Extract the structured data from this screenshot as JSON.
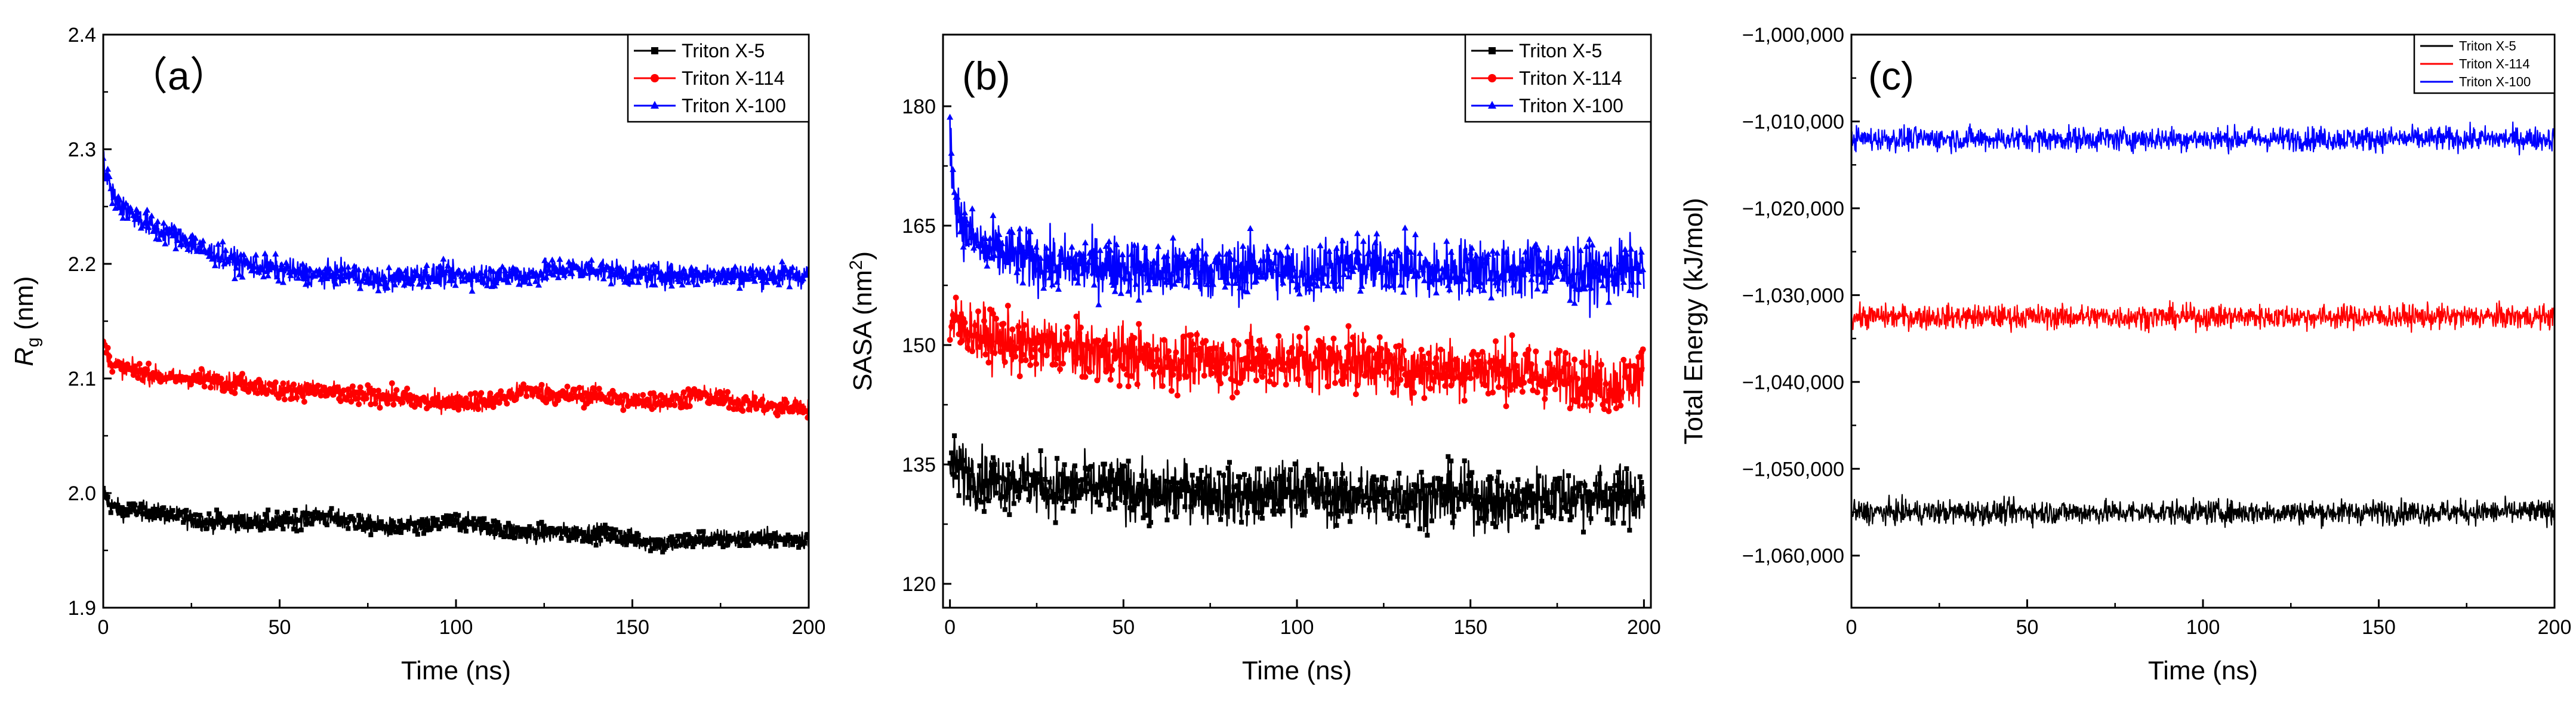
{
  "figure": {
    "colors": {
      "Triton X-5": "#000000",
      "Triton X-114": "#ff0000",
      "Triton X-100": "#0000ff"
    }
  },
  "chart_data": [
    {
      "type": "line",
      "panel_label": "（a）",
      "title": "",
      "xlabel": "Time (ns)",
      "ylabel": "Rg (nm)",
      "ylabel_main": "R",
      "ylabel_sub": "g",
      "ylabel_rest": " (nm)",
      "xlim": [
        0,
        200
      ],
      "ylim": [
        1.9,
        2.4
      ],
      "xticks": [
        0,
        50,
        100,
        150,
        200
      ],
      "xtick_labels": [
        "0",
        "50",
        "100",
        "150",
        "200"
      ],
      "yticks": [
        1.9,
        2.0,
        2.1,
        2.2,
        2.3,
        2.4
      ],
      "ytick_labels": [
        "1.9",
        "2.0",
        "2.1",
        "2.2",
        "2.3",
        "2.4"
      ],
      "legend_position": "top-right",
      "noise_amplitude": [
        0.008,
        0.008,
        0.01
      ],
      "series": [
        {
          "name": "Triton X-5",
          "color": "#000000",
          "marker": "square",
          "x": [
            0,
            2,
            5,
            10,
            20,
            30,
            40,
            50,
            60,
            70,
            80,
            90,
            100,
            110,
            120,
            130,
            140,
            150,
            160,
            170,
            180,
            190,
            200
          ],
          "values": [
            2.0,
            1.99,
            1.985,
            1.985,
            1.98,
            1.975,
            1.975,
            1.975,
            1.98,
            1.975,
            1.97,
            1.97,
            1.975,
            1.97,
            1.965,
            1.965,
            1.965,
            1.96,
            1.955,
            1.96,
            1.96,
            1.96,
            1.96
          ]
        },
        {
          "name": "Triton X-114",
          "color": "#ff0000",
          "marker": "circle",
          "x": [
            0,
            2,
            5,
            10,
            20,
            30,
            40,
            50,
            60,
            70,
            80,
            90,
            100,
            110,
            120,
            130,
            140,
            150,
            160,
            170,
            180,
            190,
            200
          ],
          "values": [
            2.13,
            2.115,
            2.11,
            2.105,
            2.1,
            2.1,
            2.095,
            2.09,
            2.09,
            2.085,
            2.085,
            2.08,
            2.08,
            2.08,
            2.09,
            2.085,
            2.085,
            2.08,
            2.08,
            2.085,
            2.08,
            2.075,
            2.075
          ]
        },
        {
          "name": "Triton X-100",
          "color": "#0000ff",
          "marker": "triangle",
          "x": [
            0,
            1,
            3,
            5,
            10,
            15,
            20,
            30,
            40,
            50,
            60,
            70,
            80,
            90,
            100,
            110,
            120,
            130,
            140,
            150,
            160,
            170,
            180,
            190,
            200
          ],
          "values": [
            2.29,
            2.275,
            2.26,
            2.25,
            2.24,
            2.23,
            2.225,
            2.21,
            2.2,
            2.195,
            2.19,
            2.19,
            2.185,
            2.19,
            2.19,
            2.19,
            2.19,
            2.195,
            2.195,
            2.19,
            2.19,
            2.19,
            2.19,
            2.19,
            2.19
          ]
        }
      ]
    },
    {
      "type": "line",
      "panel_label": "(b)",
      "title": "",
      "xlabel": "Time (ns)",
      "ylabel": "SASA (nm2)",
      "ylabel_main": "SASA (nm",
      "ylabel_sup": "2",
      "ylabel_rest": ")",
      "xlim": [
        -2,
        202
      ],
      "ylim": [
        117,
        189
      ],
      "xticks": [
        0,
        50,
        100,
        150,
        200
      ],
      "xtick_labels": [
        "0",
        "50",
        "100",
        "150",
        "200"
      ],
      "yticks": [
        120,
        135,
        150,
        165,
        180
      ],
      "ytick_labels": [
        "120",
        "135",
        "150",
        "165",
        "180"
      ],
      "legend_position": "top-right",
      "noise_amplitude": [
        3.5,
        3.5,
        3.5
      ],
      "series": [
        {
          "name": "Triton X-5",
          "color": "#000000",
          "marker": "square",
          "x": [
            0,
            5,
            10,
            20,
            30,
            40,
            50,
            60,
            70,
            80,
            90,
            100,
            110,
            120,
            130,
            140,
            150,
            160,
            170,
            180,
            190,
            200
          ],
          "values": [
            135,
            134,
            133,
            133,
            132,
            132,
            132,
            131,
            132,
            131,
            131,
            132,
            131,
            131,
            131,
            131,
            131,
            130,
            131,
            131,
            131,
            131
          ]
        },
        {
          "name": "Triton X-114",
          "color": "#ff0000",
          "marker": "circle",
          "x": [
            0,
            5,
            10,
            20,
            30,
            40,
            50,
            60,
            70,
            80,
            90,
            100,
            110,
            120,
            130,
            140,
            150,
            160,
            170,
            180,
            190,
            200
          ],
          "values": [
            153,
            152,
            151,
            150,
            150,
            149,
            149,
            148,
            148,
            148,
            148,
            148,
            148,
            148,
            147,
            147,
            147,
            147,
            146,
            146,
            145,
            146
          ]
        },
        {
          "name": "Triton X-100",
          "color": "#0000ff",
          "marker": "triangle",
          "x": [
            0,
            1,
            3,
            5,
            10,
            20,
            30,
            40,
            50,
            60,
            70,
            80,
            90,
            100,
            110,
            120,
            130,
            140,
            150,
            160,
            170,
            180,
            190,
            200
          ],
          "values": [
            177,
            170,
            166,
            164,
            162,
            161,
            160,
            160,
            160,
            159,
            160,
            159,
            160,
            159,
            160,
            160,
            160,
            159,
            160,
            159,
            160,
            159,
            159,
            160
          ]
        }
      ]
    },
    {
      "type": "line",
      "panel_label": "(c)",
      "title": "",
      "xlabel": "Time (ns)",
      "ylabel": "Total Energy (kJ/mol)",
      "xlim": [
        0,
        200
      ],
      "ylim": [
        -1066000,
        -1000000
      ],
      "xticks": [
        0,
        50,
        100,
        150,
        200
      ],
      "xtick_labels": [
        "0",
        "50",
        "100",
        "150",
        "200"
      ],
      "yticks": [
        -1000000,
        -1010000,
        -1020000,
        -1030000,
        -1040000,
        -1050000,
        -1060000
      ],
      "ytick_labels": [
        "−1,000,000",
        "−1,010,000",
        "−1,020,000",
        "−1,030,000",
        "−1,040,000",
        "−1,050,000",
        "−1,060,000"
      ],
      "legend_position": "top-right",
      "legend_small": true,
      "noise_amplitude": [
        1300,
        1300,
        1300
      ],
      "series": [
        {
          "name": "Triton X-5",
          "color": "#000000",
          "marker": "none",
          "x": [
            0,
            200
          ],
          "values": [
            -1055000,
            -1055000
          ]
        },
        {
          "name": "Triton X-114",
          "color": "#ff0000",
          "marker": "none",
          "x": [
            0,
            200
          ],
          "values": [
            -1032500,
            -1032500
          ]
        },
        {
          "name": "Triton X-100",
          "color": "#0000ff",
          "marker": "none",
          "x": [
            0,
            200
          ],
          "values": [
            -1012000,
            -1012000
          ]
        }
      ]
    }
  ]
}
